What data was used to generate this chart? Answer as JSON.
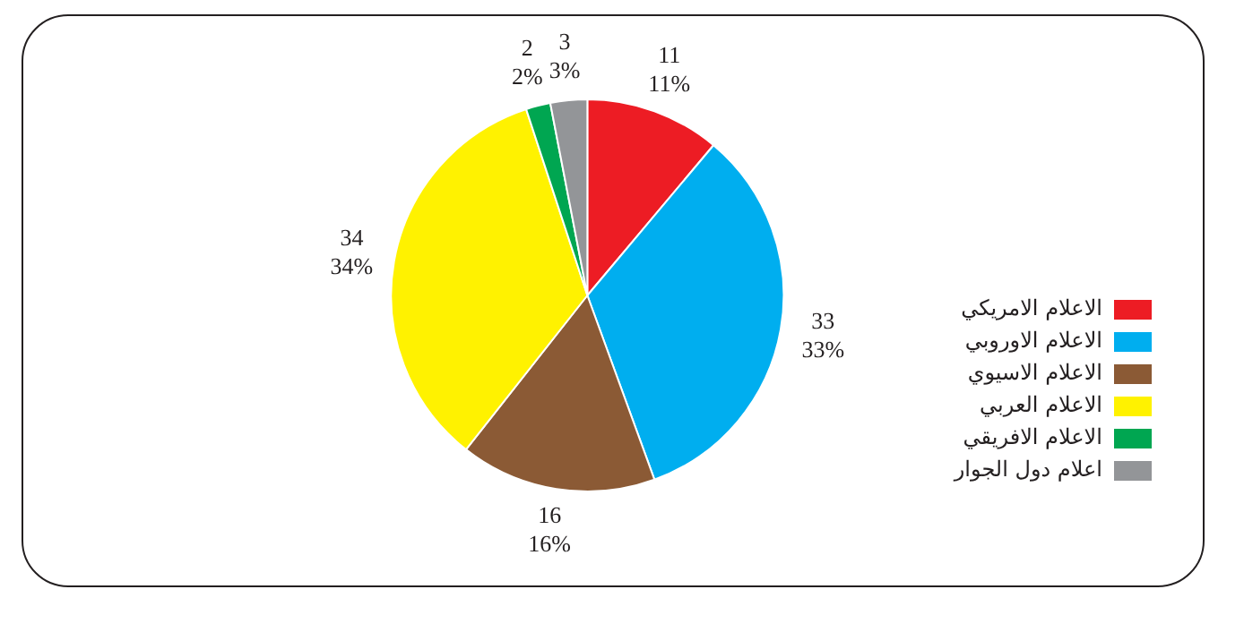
{
  "chart_data": {
    "type": "pie",
    "categories": [
      "الاعلام الامريكي",
      "الاعلام الاوروبي",
      "الاعلام الاسيوي",
      "الاعلام العربي",
      "الاعلام الافريقي",
      "اعلام دول الجوار"
    ],
    "values": [
      11,
      33,
      16,
      34,
      2,
      3
    ],
    "colors": [
      "#ed1c24",
      "#00aeef",
      "#8b5a35",
      "#fff200",
      "#00a651",
      "#939598"
    ],
    "value_labels": [
      "11\n11%",
      "33\n33%",
      "16\n16%",
      "34\n34%",
      "2\n2%",
      "3\n3%"
    ],
    "legend": "bottom right"
  }
}
